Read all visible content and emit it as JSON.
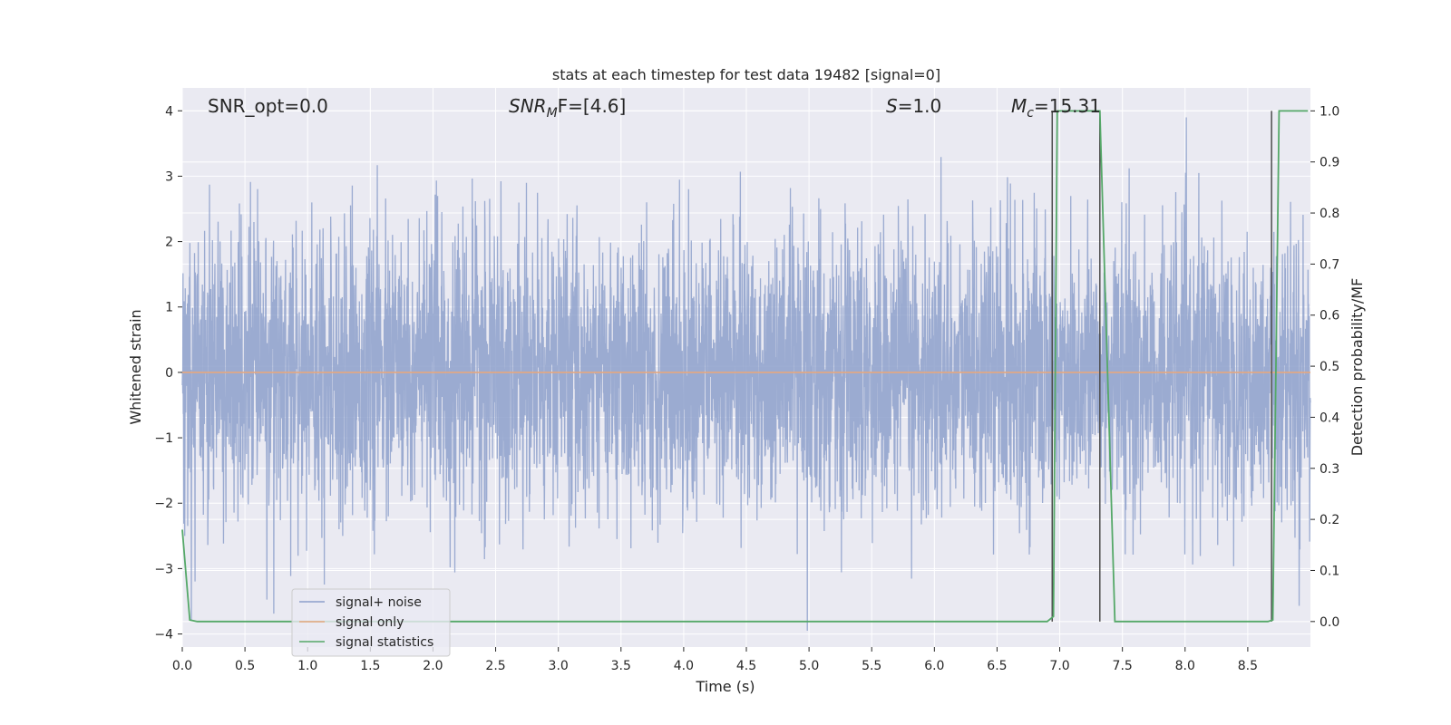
{
  "chart_data": {
    "type": "line",
    "title": "stats at each timestep for test data 19482 [signal=0]",
    "xlabel": "Time (s)",
    "ylabel": "Whitened strain",
    "ylabel_right": "Detection probability/MF",
    "xlim": [
      0,
      9
    ],
    "ylim": [
      -4.2,
      4.35
    ],
    "ylim_right": [
      -0.05,
      1.045
    ],
    "x_ticks": [
      "0.0",
      "0.5",
      "1.0",
      "1.5",
      "2.0",
      "2.5",
      "3.0",
      "3.5",
      "4.0",
      "4.5",
      "5.0",
      "5.5",
      "6.0",
      "6.5",
      "7.0",
      "7.5",
      "8.0",
      "8.5"
    ],
    "y_ticks": [
      "4",
      "3",
      "2",
      "1",
      "0",
      "−1",
      "−2",
      "−3",
      "−4"
    ],
    "y_ticks_right": [
      "1.0",
      "0.9",
      "0.8",
      "0.7",
      "0.6",
      "0.5",
      "0.4",
      "0.3",
      "0.2",
      "0.1",
      "0.0"
    ],
    "annotations": {
      "snr_opt": "SNR_opt=0.0",
      "snr_mf_main": "SNR",
      "snr_mf_sub": "M",
      "snr_mf_rest": "F=[4.6]",
      "s_main": "S",
      "s_rest": "=1.0",
      "mc_main": "M",
      "mc_sub": "c",
      "mc_rest": "=15.31"
    },
    "legend": {
      "placement": "lower-left",
      "entries": [
        {
          "label": "signal+ noise",
          "color": "#8da0cb"
        },
        {
          "label": "signal only",
          "color": "#e5a77f"
        },
        {
          "label": "signal statistics",
          "color": "#55a868"
        }
      ]
    },
    "series": [
      {
        "name": "signal+ noise",
        "color": "#8da0cb",
        "description_values": "dense whitened noise, roughly ±3.5"
      },
      {
        "name": "signal only",
        "color": "#e5a77f",
        "values_constant": 0
      },
      {
        "name": "signal statistics",
        "color": "#55a868",
        "axis": "right",
        "x": [
          0.0,
          0.06,
          0.12,
          6.9,
          6.95,
          6.98,
          7.32,
          7.44,
          8.66,
          8.7,
          8.75,
          8.98
        ],
        "y": [
          0.18,
          0.003,
          0.0,
          0.0,
          0.01,
          1.0,
          1.0,
          0.0,
          0.0,
          0.003,
          1.0,
          1.0
        ]
      }
    ],
    "vertical_markers": [
      {
        "x": 6.94,
        "y0": 0.0,
        "y1": 1.0
      },
      {
        "x": 7.32,
        "y0": 0.0,
        "y1": 1.0
      },
      {
        "x": 8.69,
        "y0": 0.0,
        "y1": 1.0
      }
    ],
    "colors": {
      "plot_bg": "#eaeaf2",
      "grid": "#ffffff",
      "noise": "#8da0cb",
      "signal_only": "#e5a77f",
      "stats": "#55a868",
      "marker": "#4d4d4d"
    },
    "grid": true
  }
}
